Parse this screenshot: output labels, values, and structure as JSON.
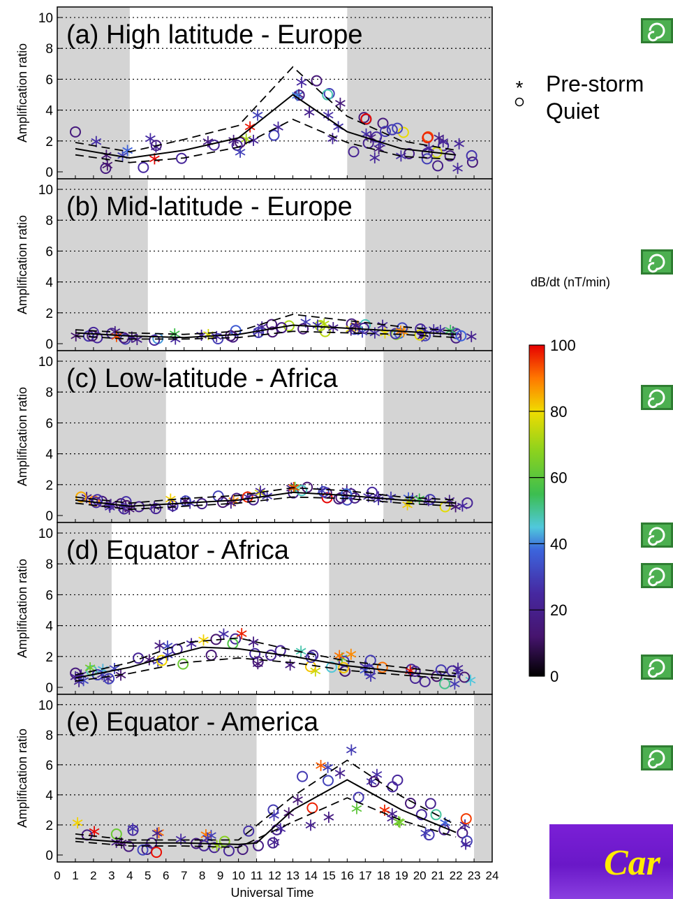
{
  "colors": {
    "shade": "#d4d4d4",
    "banner": "#7a1fd6",
    "banner_text": "#ffeb00"
  },
  "xlabel": "Universal Time",
  "x_ticks": [
    "0",
    "1",
    "2",
    "3",
    "4",
    "5",
    "6",
    "7",
    "8",
    "9",
    "10",
    "11",
    "12",
    "13",
    "14",
    "15",
    "16",
    "17",
    "18",
    "19",
    "20",
    "21",
    "22",
    "23",
    "24"
  ],
  "legend": {
    "pre_storm": "Pre-storm",
    "quiet": "Quiet"
  },
  "colorbar": {
    "label": "dB/dt (nT/min)",
    "ticks": [
      "100",
      "80",
      "60",
      "40",
      "20",
      "0"
    ]
  },
  "banner_text": "Car",
  "icon_name": "swirl-icon",
  "chart_data": [
    {
      "type": "scatter",
      "title": "(a) High latitude - Europe",
      "ylabel": "Amplification ratio",
      "xlim": [
        0,
        24
      ],
      "ylim": [
        0,
        10.5
      ],
      "yticks": [
        "0",
        "2",
        "4",
        "6",
        "8",
        "10"
      ],
      "night_shading": [
        [
          0,
          4
        ],
        [
          16,
          24
        ]
      ],
      "median": [
        [
          1,
          1.5
        ],
        [
          4,
          0.9
        ],
        [
          7,
          1.4
        ],
        [
          10,
          2.2
        ],
        [
          13,
          5.0
        ],
        [
          16,
          2.6
        ],
        [
          19,
          1.5
        ],
        [
          22,
          1.1
        ]
      ],
      "upper": [
        [
          1,
          1.9
        ],
        [
          4,
          1.3
        ],
        [
          7,
          2.1
        ],
        [
          10,
          3.0
        ],
        [
          13,
          6.8
        ],
        [
          16,
          3.6
        ],
        [
          19,
          2.0
        ],
        [
          22,
          1.4
        ]
      ],
      "lower": [
        [
          1,
          1.1
        ],
        [
          4,
          0.6
        ],
        [
          7,
          0.9
        ],
        [
          10,
          1.6
        ],
        [
          13,
          3.4
        ],
        [
          16,
          1.9
        ],
        [
          19,
          1.0
        ],
        [
          22,
          0.8
        ]
      ],
      "spread": 1.2
    },
    {
      "type": "scatter",
      "title": "(b) Mid-latitude - Europe",
      "ylabel": "Amplification ratio",
      "xlim": [
        0,
        24
      ],
      "ylim": [
        0,
        10.5
      ],
      "yticks": [
        "0",
        "2",
        "4",
        "6",
        "8",
        "10"
      ],
      "night_shading": [
        [
          0,
          5
        ],
        [
          17,
          24
        ]
      ],
      "median": [
        [
          1,
          0.7
        ],
        [
          4,
          0.5
        ],
        [
          7,
          0.4
        ],
        [
          10,
          0.6
        ],
        [
          13,
          1.2
        ],
        [
          16,
          1.0
        ],
        [
          19,
          0.8
        ],
        [
          22,
          0.6
        ]
      ],
      "upper": [
        [
          1,
          0.9
        ],
        [
          4,
          0.7
        ],
        [
          7,
          0.6
        ],
        [
          10,
          0.8
        ],
        [
          13,
          1.9
        ],
        [
          16,
          1.5
        ],
        [
          19,
          1.1
        ],
        [
          22,
          0.8
        ]
      ],
      "lower": [
        [
          1,
          0.5
        ],
        [
          4,
          0.3
        ],
        [
          7,
          0.3
        ],
        [
          10,
          0.4
        ],
        [
          13,
          0.8
        ],
        [
          16,
          0.7
        ],
        [
          19,
          0.6
        ],
        [
          22,
          0.4
        ]
      ],
      "spread": 0.4
    },
    {
      "type": "scatter",
      "title": "(c) Low-latitude - Africa",
      "ylabel": "Amplification ratio",
      "xlim": [
        0,
        24
      ],
      "ylim": [
        0,
        10.5
      ],
      "yticks": [
        "0",
        "2",
        "4",
        "6",
        "8",
        "10"
      ],
      "night_shading": [
        [
          0,
          6
        ],
        [
          18,
          24
        ]
      ],
      "median": [
        [
          1,
          1.0
        ],
        [
          4,
          0.6
        ],
        [
          7,
          0.8
        ],
        [
          10,
          1.0
        ],
        [
          13,
          1.5
        ],
        [
          16,
          1.3
        ],
        [
          19,
          1.0
        ],
        [
          22,
          0.8
        ]
      ],
      "upper": [
        [
          1,
          1.2
        ],
        [
          4,
          0.8
        ],
        [
          7,
          1.1
        ],
        [
          10,
          1.3
        ],
        [
          13,
          1.8
        ],
        [
          16,
          1.6
        ],
        [
          19,
          1.2
        ],
        [
          22,
          1.0
        ]
      ],
      "lower": [
        [
          1,
          0.8
        ],
        [
          4,
          0.4
        ],
        [
          7,
          0.6
        ],
        [
          10,
          0.8
        ],
        [
          13,
          1.2
        ],
        [
          16,
          1.1
        ],
        [
          19,
          0.8
        ],
        [
          22,
          0.6
        ]
      ],
      "spread": 0.4
    },
    {
      "type": "scatter",
      "title": "(d) Equator - Africa",
      "ylabel": "Amplification ratio",
      "xlim": [
        0,
        24
      ],
      "ylim": [
        0,
        10.5
      ],
      "yticks": [
        "0",
        "2",
        "4",
        "6",
        "8",
        "10"
      ],
      "night_shading": [
        [
          0,
          3
        ],
        [
          15,
          24
        ]
      ],
      "median": [
        [
          1,
          0.6
        ],
        [
          4,
          1.3
        ],
        [
          7,
          2.3
        ],
        [
          8,
          2.6
        ],
        [
          10,
          2.5
        ],
        [
          13,
          2.0
        ],
        [
          16,
          1.4
        ],
        [
          19,
          1.0
        ],
        [
          22,
          0.7
        ]
      ],
      "upper": [
        [
          1,
          0.8
        ],
        [
          4,
          1.6
        ],
        [
          7,
          2.9
        ],
        [
          10,
          3.2
        ],
        [
          13,
          2.4
        ],
        [
          16,
          1.7
        ],
        [
          19,
          1.3
        ],
        [
          22,
          0.9
        ]
      ],
      "lower": [
        [
          1,
          0.4
        ],
        [
          4,
          0.9
        ],
        [
          7,
          1.6
        ],
        [
          10,
          1.9
        ],
        [
          13,
          1.6
        ],
        [
          16,
          1.1
        ],
        [
          19,
          0.8
        ],
        [
          22,
          0.5
        ]
      ],
      "spread": 0.8
    },
    {
      "type": "scatter",
      "title": "(e) Equator - America",
      "ylabel": "Amplification ratio",
      "xlim": [
        0,
        24
      ],
      "ylim": [
        0,
        10.5
      ],
      "yticks": [
        "0",
        "2",
        "4",
        "6",
        "8",
        "10"
      ],
      "night_shading": [
        [
          0,
          11
        ],
        [
          23,
          24
        ]
      ],
      "median": [
        [
          1,
          1.1
        ],
        [
          4,
          0.8
        ],
        [
          7,
          0.8
        ],
        [
          10,
          0.7
        ],
        [
          11,
          0.8
        ],
        [
          13,
          3.0
        ],
        [
          16,
          5.0
        ],
        [
          19,
          3.0
        ],
        [
          22,
          1.5
        ]
      ],
      "upper": [
        [
          1,
          1.4
        ],
        [
          4,
          1.0
        ],
        [
          7,
          1.0
        ],
        [
          10,
          1.0
        ],
        [
          13,
          3.9
        ],
        [
          16,
          6.3
        ],
        [
          19,
          3.9
        ],
        [
          22,
          2.0
        ]
      ],
      "lower": [
        [
          1,
          0.9
        ],
        [
          4,
          0.6
        ],
        [
          7,
          0.6
        ],
        [
          10,
          0.5
        ],
        [
          13,
          2.2
        ],
        [
          16,
          3.8
        ],
        [
          19,
          2.3
        ],
        [
          22,
          1.2
        ]
      ],
      "spread": 1.2
    }
  ]
}
